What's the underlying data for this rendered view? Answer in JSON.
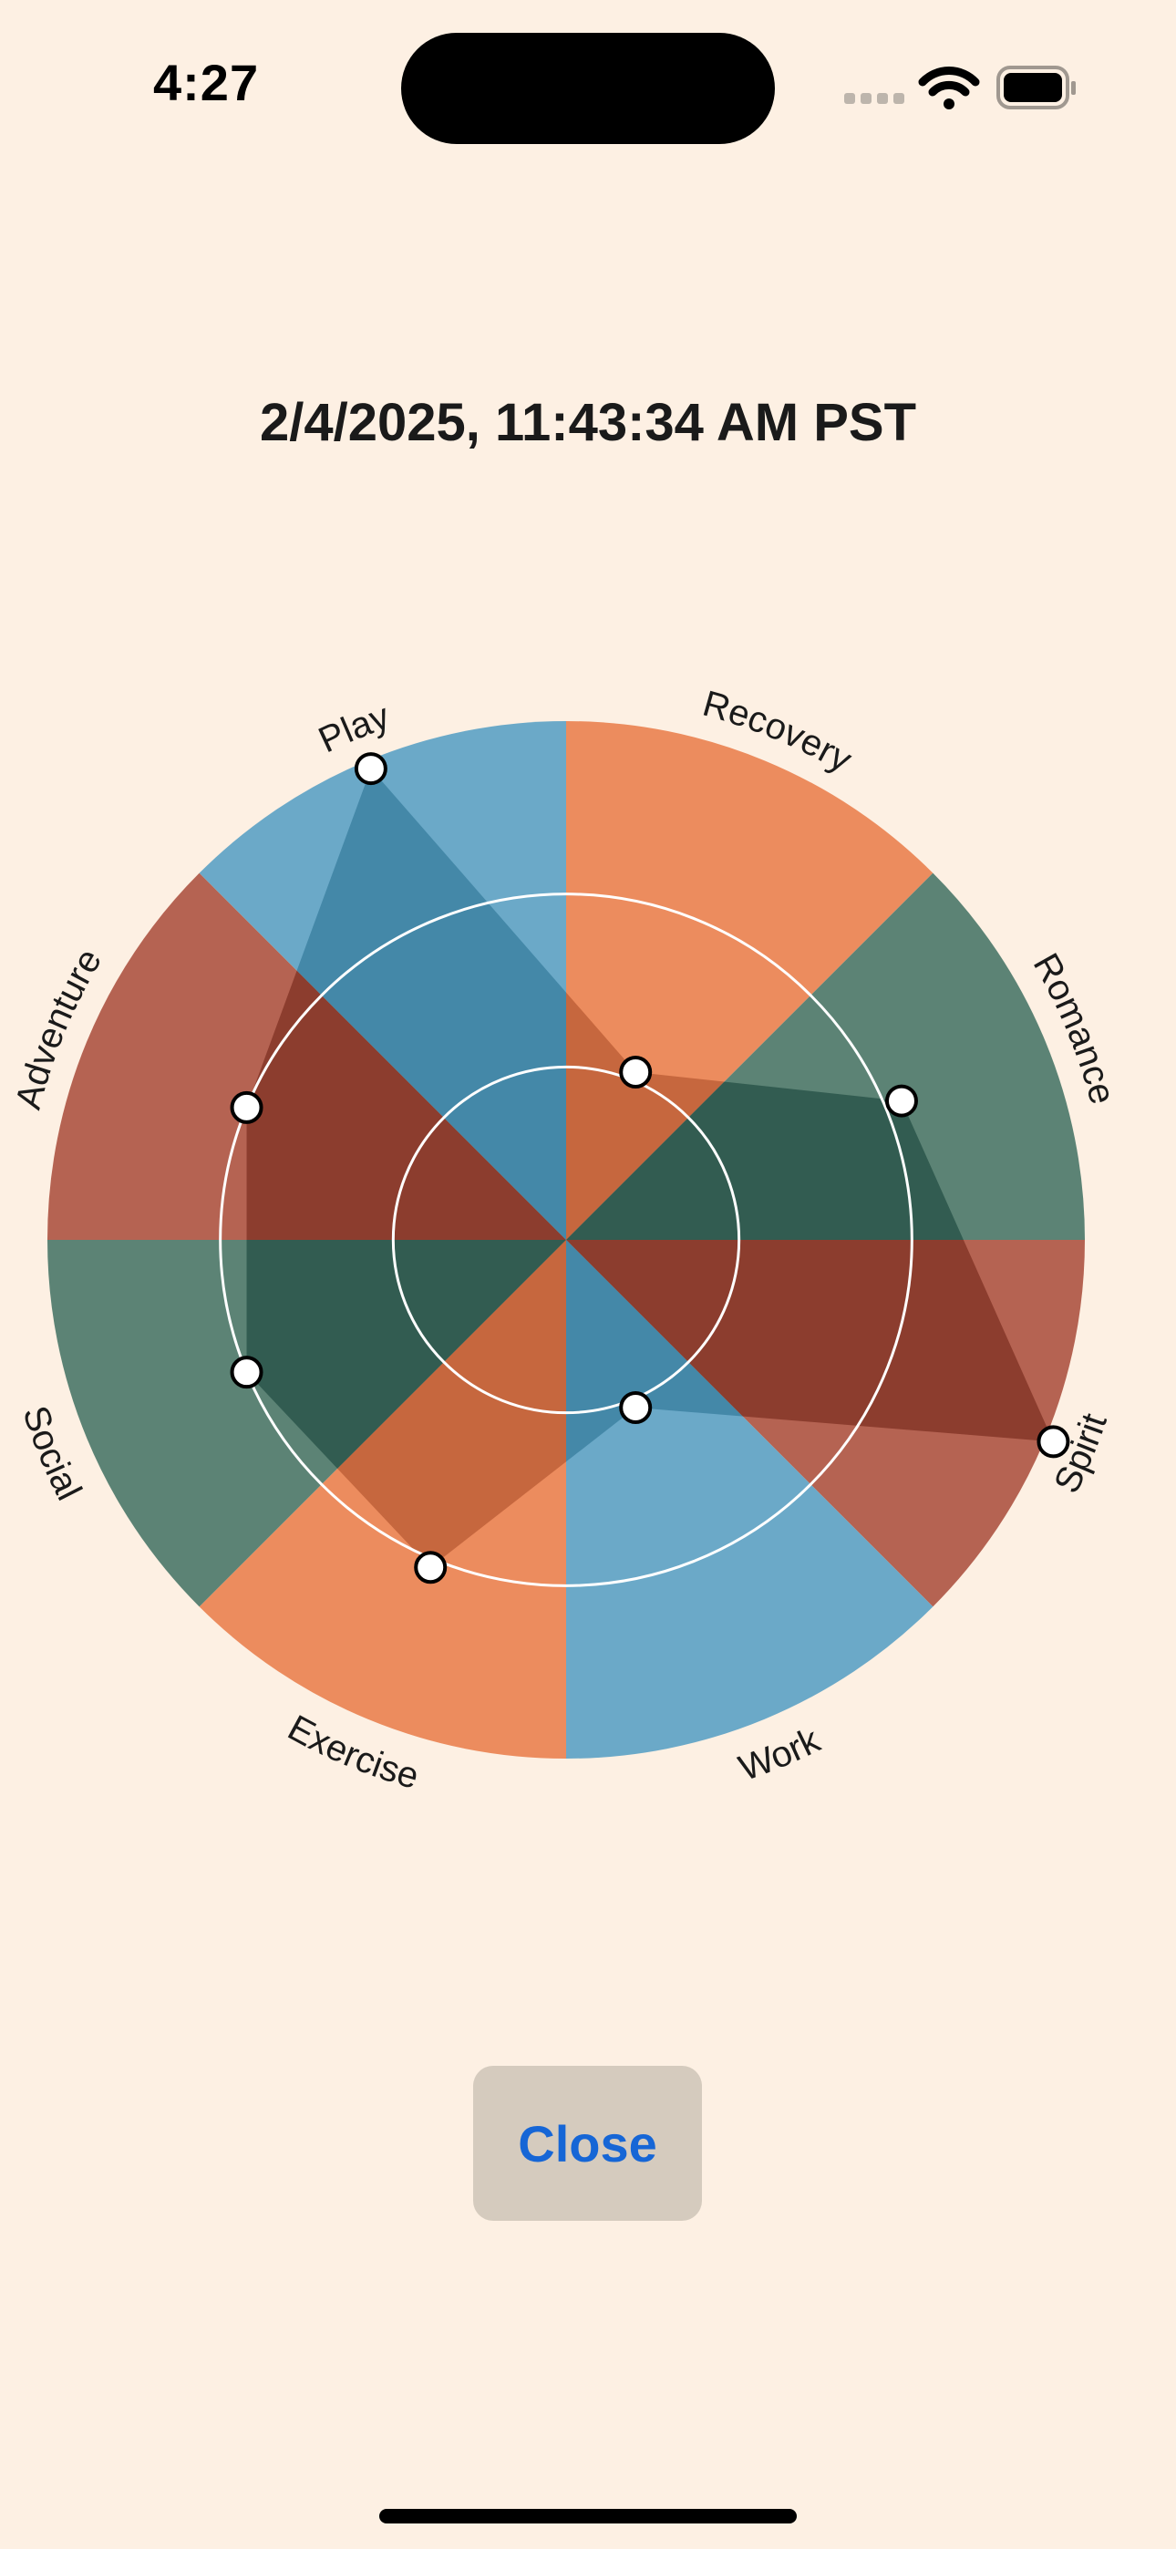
{
  "status_bar": {
    "time": "4:27"
  },
  "header": {
    "timestamp": "2/4/2025, 11:43:34 AM PST"
  },
  "icons": {
    "signal": "cellular-signal-icon",
    "wifi": "wifi-icon",
    "battery": "battery-icon"
  },
  "chart_data": {
    "type": "radial-wheel",
    "scale_max": 3,
    "rings": [
      1,
      2
    ],
    "categories": [
      "Recovery",
      "Romance",
      "Spirit",
      "Work",
      "Exercise",
      "Social",
      "Adventure",
      "Play"
    ],
    "values": [
      1.05,
      2.1,
      3.05,
      1.05,
      2.05,
      2.0,
      2.0,
      2.95
    ],
    "colors": [
      "#EC8C5E",
      "#5C8375",
      "#B56352",
      "#6BA9C8",
      "#EC8C5E",
      "#5C8375",
      "#B56352",
      "#6BA9C8"
    ],
    "inner_colors": [
      "#C6673E",
      "#325C51",
      "#8C3D2E",
      "#4488A8",
      "#C6673E",
      "#325C51",
      "#8C3D2E",
      "#4488A8"
    ],
    "background": "#FDF0E3"
  },
  "actions": {
    "close_label": "Close",
    "close_color": "#1666D6"
  }
}
